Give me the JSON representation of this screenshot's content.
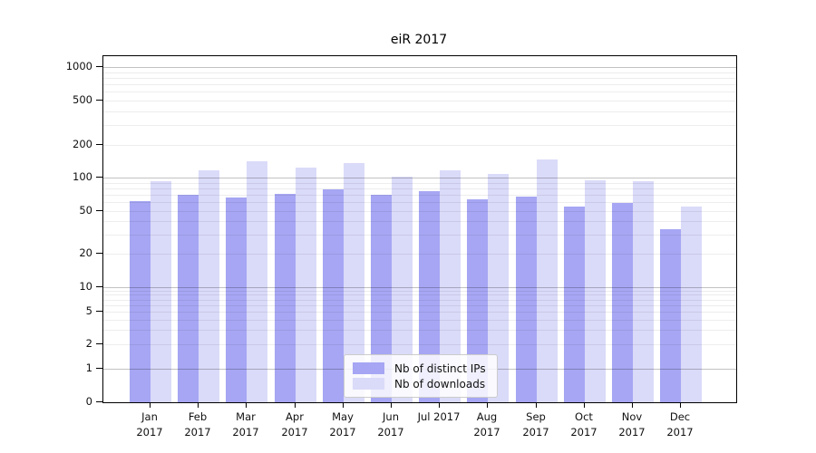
{
  "title": "eiR 2017",
  "chart_data": {
    "type": "bar",
    "title": "eiR 2017",
    "categories": [
      "Jan 2017",
      "Feb 2017",
      "Mar 2017",
      "Apr 2017",
      "May 2017",
      "Jun 2017",
      "Jul 2017",
      "Aug 2017",
      "Sep 2017",
      "Oct 2017",
      "Nov 2017",
      "Dec 2017"
    ],
    "series": [
      {
        "name": "Nb of distinct IPs",
        "color": "#a6a6f4",
        "values": [
          61,
          70,
          66,
          72,
          78,
          70,
          75,
          63,
          67,
          55,
          59,
          34
        ]
      },
      {
        "name": "Nb of downloads",
        "color": "#dadaf9",
        "values": [
          93,
          118,
          140,
          124,
          136,
          103,
          116,
          109,
          146,
          95,
          93,
          55
        ]
      }
    ],
    "yaxis": {
      "ticks": [
        0,
        1,
        2,
        5,
        10,
        20,
        50,
        100,
        200,
        500,
        1000
      ],
      "scale": "log-like",
      "ylim": [
        0,
        1260
      ]
    },
    "xlabel": "",
    "ylabel": "",
    "grid": true,
    "legend_position": "lower center"
  }
}
